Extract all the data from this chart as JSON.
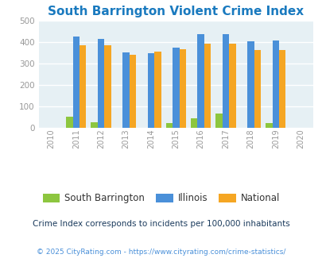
{
  "title": "South Barrington Violent Crime Index",
  "years": [
    2011,
    2012,
    2013,
    2014,
    2015,
    2016,
    2017,
    2018,
    2019
  ],
  "south_barrington": [
    50,
    25,
    0,
    0,
    22,
    43,
    65,
    0,
    23
  ],
  "illinois": [
    428,
    414,
    352,
    348,
    375,
    440,
    440,
    405,
    408
  ],
  "national": [
    385,
    385,
    342,
    355,
    368,
    394,
    392,
    362,
    362
  ],
  "sb_color": "#8dc63f",
  "il_color": "#4a90d9",
  "nat_color": "#f5a623",
  "bg_color": "#e6f0f4",
  "ylim": [
    0,
    500
  ],
  "yticks": [
    0,
    100,
    200,
    300,
    400,
    500
  ],
  "xlim": [
    2009.5,
    2020.5
  ],
  "legend_labels": [
    "South Barrington",
    "Illinois",
    "National"
  ],
  "footnote1": "Crime Index corresponds to incidents per 100,000 inhabitants",
  "footnote2": "© 2025 CityRating.com - https://www.cityrating.com/crime-statistics/",
  "bar_width": 0.27,
  "title_color": "#1a7abf",
  "tick_color": "#999999",
  "footnote1_color": "#1a3a5c",
  "footnote2_color": "#4a90d9"
}
